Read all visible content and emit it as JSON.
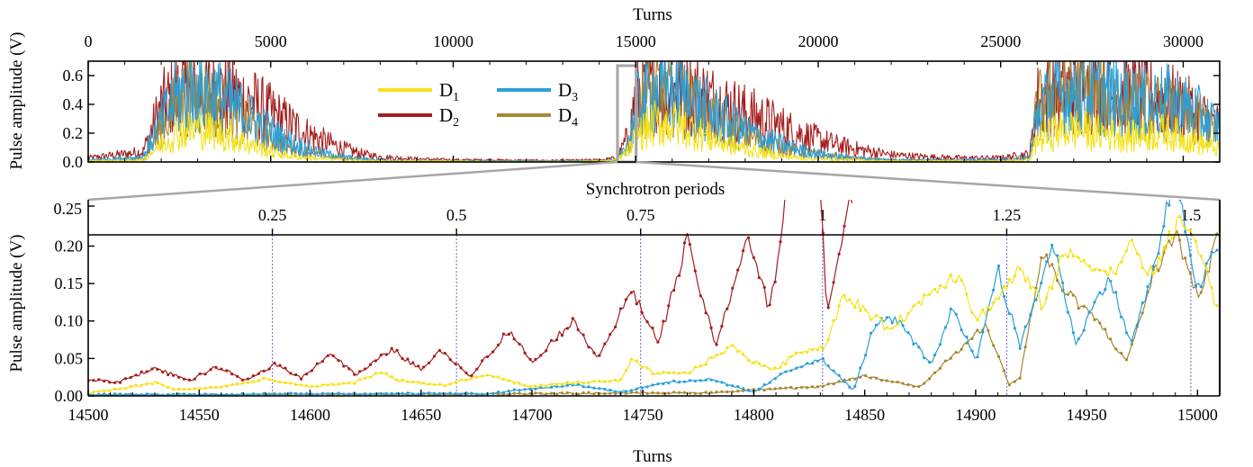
{
  "colors": {
    "D1": "#f5e21a",
    "D2": "#a51d1d",
    "D3": "#2b9fd8",
    "D4": "#a88632",
    "guide": "#6b5fd4",
    "connector": "#a6a6a6"
  },
  "chart_data": [
    {
      "type": "line",
      "panel": "overview",
      "xlabel": "Turns",
      "ylabel": "Pulse amplitude (V)",
      "xlim": [
        0,
        31000
      ],
      "ylim": [
        0,
        0.7
      ],
      "x_ticks": [
        "0",
        "5000",
        "10000",
        "15000",
        "20000",
        "25000",
        "30000"
      ],
      "y_ticks": [
        "0.0",
        "0.2",
        "0.4",
        "0.6"
      ],
      "zoom_window": [
        14500,
        15010
      ],
      "series": [
        {
          "name": "D1",
          "label_main": "D",
          "label_sub": "1",
          "envelope": {
            "x": [
              0,
              1500,
              2000,
              2500,
              3000,
              3500,
              4000,
              4500,
              5000,
              5500,
              6000,
              6500,
              7000,
              7500,
              8000,
              9000,
              10000,
              11000,
              12000,
              13000,
              14000,
              14500,
              14850,
              15000,
              15500,
              16000,
              16500,
              17000,
              17500,
              18000,
              18500,
              19000,
              19500,
              20000,
              20500,
              21000,
              21500,
              22000,
              23000,
              24000,
              25000,
              25800,
              26000,
              26500,
              27000,
              27500,
              28000,
              28500,
              29000,
              29500,
              30000,
              30500,
              31000
            ],
            "y": [
              0.01,
              0.02,
              0.18,
              0.3,
              0.33,
              0.3,
              0.24,
              0.16,
              0.1,
              0.06,
              0.04,
              0.03,
              0.02,
              0.015,
              0.01,
              0.01,
              0.01,
              0.005,
              0.005,
              0.005,
              0.01,
              0.02,
              0.13,
              0.25,
              0.38,
              0.38,
              0.32,
              0.24,
              0.18,
              0.13,
              0.09,
              0.06,
              0.04,
              0.03,
              0.025,
              0.02,
              0.015,
              0.01,
              0.01,
              0.01,
              0.01,
              0.02,
              0.22,
              0.3,
              0.33,
              0.3,
              0.28,
              0.25,
              0.27,
              0.3,
              0.25,
              0.18,
              0.12
            ]
          }
        },
        {
          "name": "D2",
          "label_main": "D",
          "label_sub": "2",
          "envelope": {
            "x": [
              0,
              1500,
              2000,
              2500,
              3000,
              3500,
              4000,
              4500,
              5000,
              5500,
              6000,
              6500,
              7000,
              7500,
              8000,
              9000,
              10000,
              11000,
              12000,
              13000,
              14000,
              14500,
              14850,
              15000,
              15500,
              16000,
              16500,
              17000,
              17500,
              18000,
              18500,
              19000,
              19500,
              20000,
              20500,
              21000,
              21500,
              22000,
              23000,
              24000,
              25000,
              25800,
              26000,
              26500,
              27000,
              27500,
              28000,
              28500,
              29000,
              29500,
              30000,
              30500,
              31000
            ],
            "y": [
              0.04,
              0.1,
              0.55,
              0.7,
              0.7,
              0.7,
              0.66,
              0.58,
              0.48,
              0.38,
              0.28,
              0.2,
              0.13,
              0.08,
              0.05,
              0.03,
              0.02,
              0.02,
              0.015,
              0.015,
              0.02,
              0.04,
              0.3,
              0.7,
              0.7,
              0.7,
              0.7,
              0.62,
              0.55,
              0.48,
              0.42,
              0.35,
              0.28,
              0.22,
              0.17,
              0.13,
              0.1,
              0.07,
              0.05,
              0.04,
              0.04,
              0.08,
              0.6,
              0.7,
              0.7,
              0.7,
              0.7,
              0.68,
              0.65,
              0.62,
              0.55,
              0.45,
              0.35
            ]
          }
        },
        {
          "name": "D3",
          "label_main": "D",
          "label_sub": "3",
          "envelope": {
            "x": [
              0,
              1500,
              2000,
              2500,
              3000,
              3500,
              4000,
              4500,
              5000,
              5500,
              6000,
              6500,
              7000,
              7500,
              8000,
              9000,
              10000,
              11000,
              12000,
              13000,
              14000,
              14500,
              14850,
              15000,
              15500,
              16000,
              16500,
              17000,
              17500,
              18000,
              18500,
              19000,
              19500,
              20000,
              20500,
              21000,
              21500,
              22000,
              23000,
              24000,
              25000,
              25800,
              26000,
              26500,
              27000,
              27500,
              28000,
              28500,
              29000,
              29500,
              30000,
              30500,
              31000
            ],
            "y": [
              0.02,
              0.05,
              0.4,
              0.68,
              0.7,
              0.65,
              0.55,
              0.42,
              0.3,
              0.2,
              0.13,
              0.08,
              0.05,
              0.03,
              0.02,
              0.01,
              0.01,
              0.01,
              0.01,
              0.01,
              0.01,
              0.02,
              0.25,
              0.55,
              0.7,
              0.7,
              0.62,
              0.5,
              0.4,
              0.31,
              0.23,
              0.17,
              0.12,
              0.08,
              0.06,
              0.04,
              0.03,
              0.02,
              0.02,
              0.02,
              0.02,
              0.05,
              0.5,
              0.65,
              0.68,
              0.7,
              0.66,
              0.62,
              0.58,
              0.6,
              0.55,
              0.45,
              0.35
            ]
          }
        },
        {
          "name": "D4",
          "label_main": "D",
          "label_sub": "4",
          "envelope": {
            "x": [
              0,
              1500,
              2000,
              2500,
              3000,
              3500,
              4000,
              4500,
              5000,
              5500,
              6000,
              6500,
              7000,
              7500,
              8000,
              9000,
              10000,
              11000,
              12000,
              13000,
              14000,
              14500,
              14850,
              15000,
              15500,
              16000,
              16500,
              17000,
              17500,
              18000,
              18500,
              19000,
              19500,
              20000,
              20500,
              21000,
              21500,
              22000,
              23000,
              24000,
              25000,
              25800,
              26000,
              26500,
              27000,
              27500,
              28000,
              28500,
              29000,
              29500,
              30000,
              30500,
              31000
            ],
            "y": [
              0.01,
              0.03,
              0.35,
              0.62,
              0.66,
              0.6,
              0.48,
              0.35,
              0.24,
              0.15,
              0.1,
              0.06,
              0.04,
              0.025,
              0.015,
              0.01,
              0.01,
              0.01,
              0.01,
              0.01,
              0.01,
              0.01,
              0.2,
              0.6,
              0.7,
              0.68,
              0.58,
              0.45,
              0.35,
              0.27,
              0.2,
              0.15,
              0.1,
              0.07,
              0.05,
              0.035,
              0.025,
              0.02,
              0.015,
              0.015,
              0.015,
              0.03,
              0.55,
              0.68,
              0.7,
              0.66,
              0.62,
              0.58,
              0.55,
              0.52,
              0.48,
              0.4,
              0.3
            ]
          }
        }
      ]
    },
    {
      "type": "line",
      "panel": "zoom",
      "xlabel": "Turns",
      "ylabel": "Pulse amplitude (V)",
      "xlim": [
        14500,
        15010
      ],
      "ylim": [
        0,
        0.215
      ],
      "x_ticks": [
        "14500",
        "14550",
        "14600",
        "14650",
        "14700",
        "14750",
        "14800",
        "14850",
        "14900",
        "14950",
        "15000"
      ],
      "y_ticks": [
        "0.00",
        "0.05",
        "0.10",
        "0.15",
        "0.20"
      ],
      "secondary_x": {
        "title": "Synchrotron periods",
        "ticks": [
          {
            "label": "0.25",
            "turn": 14583
          },
          {
            "label": "0.5",
            "turn": 14666
          },
          {
            "label": "0.75",
            "turn": 14749
          },
          {
            "label": "1",
            "turn": 14831
          },
          {
            "label": "1.25",
            "turn": 14914
          },
          {
            "label": "1.5",
            "turn": 14997
          }
        ]
      },
      "overflow_tick": "0.25",
      "series": [
        {
          "name": "D1",
          "label_main": "D",
          "label_sub": "1",
          "x": [
            14500,
            14520,
            14530,
            14540,
            14560,
            14580,
            14600,
            14620,
            14632,
            14640,
            14660,
            14680,
            14700,
            14720,
            14740,
            14745,
            14755,
            14770,
            14790,
            14800,
            14810,
            14820,
            14832,
            14840,
            14848,
            14860,
            14870,
            14880,
            14893,
            14900,
            14910,
            14920,
            14930,
            14940,
            14950,
            14960,
            14970,
            14980,
            14992,
            15000,
            15010
          ],
          "y": [
            0.004,
            0.012,
            0.018,
            0.008,
            0.012,
            0.022,
            0.012,
            0.018,
            0.032,
            0.02,
            0.014,
            0.028,
            0.012,
            0.018,
            0.02,
            0.048,
            0.03,
            0.03,
            0.066,
            0.045,
            0.035,
            0.06,
            0.065,
            0.13,
            0.12,
            0.09,
            0.11,
            0.14,
            0.165,
            0.1,
            0.13,
            0.17,
            0.12,
            0.19,
            0.18,
            0.16,
            0.2,
            0.16,
            0.24,
            0.2,
            0.105
          ]
        },
        {
          "name": "D2",
          "label_main": "D",
          "label_sub": "2",
          "x": [
            14500,
            14513,
            14530,
            14546,
            14558,
            14571,
            14584,
            14596,
            14609,
            14621,
            14637,
            14650,
            14660,
            14665,
            14672,
            14690,
            14700,
            14718,
            14730,
            14745,
            14757,
            14770,
            14783,
            14797,
            14807,
            14812,
            14815,
            14830,
            14833,
            14845
          ],
          "y": [
            0.022,
            0.018,
            0.037,
            0.02,
            0.039,
            0.02,
            0.043,
            0.024,
            0.057,
            0.028,
            0.062,
            0.035,
            0.062,
            0.045,
            0.026,
            0.088,
            0.044,
            0.1,
            0.052,
            0.14,
            0.072,
            0.205,
            0.065,
            0.215,
            0.115,
            0.2,
            0.28,
            0.27,
            0.11,
            0.28
          ]
        },
        {
          "name": "D3",
          "label_main": "D",
          "label_sub": "3",
          "x": [
            14500,
            14550,
            14600,
            14650,
            14680,
            14700,
            14720,
            14740,
            14760,
            14780,
            14800,
            14815,
            14830,
            14845,
            14855,
            14865,
            14880,
            14890,
            14900,
            14910,
            14920,
            14935,
            14945,
            14960,
            14970,
            14980,
            14990,
            15000,
            15010
          ],
          "y": [
            0.002,
            0.002,
            0.003,
            0.003,
            0.003,
            0.01,
            0.015,
            0.005,
            0.018,
            0.022,
            0.005,
            0.033,
            0.05,
            0.007,
            0.1,
            0.1,
            0.04,
            0.12,
            0.045,
            0.17,
            0.065,
            0.205,
            0.07,
            0.16,
            0.07,
            0.165,
            0.3,
            0.14,
            0.21
          ]
        },
        {
          "name": "D4",
          "label_main": "D",
          "label_sub": "4",
          "x": [
            14500,
            14550,
            14600,
            14650,
            14700,
            14750,
            14780,
            14800,
            14830,
            14850,
            14860,
            14875,
            14890,
            14905,
            14915,
            14920,
            14930,
            14940,
            14955,
            14968,
            14980,
            14990,
            15000,
            15010
          ],
          "y": [
            0.001,
            0.001,
            0.002,
            0.002,
            0.003,
            0.004,
            0.004,
            0.008,
            0.012,
            0.027,
            0.02,
            0.012,
            0.055,
            0.095,
            0.015,
            0.025,
            0.19,
            0.14,
            0.1,
            0.045,
            0.16,
            0.22,
            0.13,
            0.215
          ]
        }
      ]
    }
  ]
}
